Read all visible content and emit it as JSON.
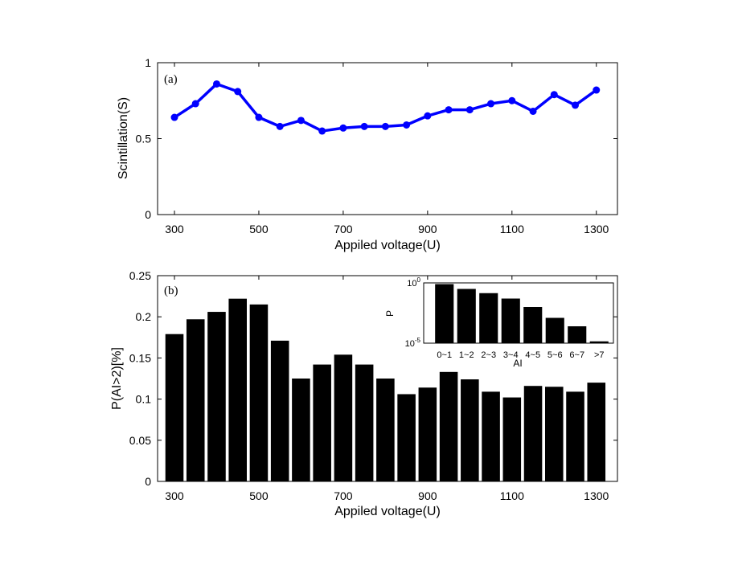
{
  "chart_data": [
    {
      "type": "line",
      "panel_label": "(a)",
      "xlabel": "Appiled voltage(U)",
      "ylabel": "Scintillation(S)",
      "xlim": [
        260,
        1350
      ],
      "ylim": [
        0,
        1
      ],
      "xticks": [
        "300",
        "500",
        "700",
        "900",
        "1100",
        "1300"
      ],
      "yticks": [
        "0",
        "0.5",
        "1"
      ],
      "color": "#0000ff",
      "x": [
        300,
        350,
        400,
        450,
        500,
        550,
        600,
        650,
        700,
        750,
        800,
        850,
        900,
        950,
        1000,
        1050,
        1100,
        1150,
        1200,
        1250,
        1300
      ],
      "y": [
        0.64,
        0.73,
        0.86,
        0.81,
        0.64,
        0.58,
        0.62,
        0.55,
        0.57,
        0.58,
        0.58,
        0.59,
        0.65,
        0.69,
        0.69,
        0.73,
        0.75,
        0.68,
        0.79,
        0.72,
        0.82
      ]
    },
    {
      "type": "bar",
      "panel_label": "(b)",
      "xlabel": "Appiled voltage(U)",
      "ylabel": "P(AI>2)[%]",
      "xlim": [
        260,
        1350
      ],
      "ylim": [
        0,
        0.25
      ],
      "xticks": [
        "300",
        "500",
        "700",
        "900",
        "1100",
        "1300"
      ],
      "yticks": [
        "0",
        "0.05",
        "0.1",
        "0.15",
        "0.2",
        "0.25"
      ],
      "color": "#000000",
      "x": [
        300,
        350,
        400,
        450,
        500,
        550,
        600,
        650,
        700,
        750,
        800,
        850,
        900,
        950,
        1000,
        1050,
        1100,
        1150,
        1200,
        1250,
        1300
      ],
      "values": [
        0.179,
        0.197,
        0.206,
        0.222,
        0.215,
        0.171,
        0.125,
        0.142,
        0.154,
        0.142,
        0.125,
        0.106,
        0.114,
        0.133,
        0.124,
        0.109,
        0.102,
        0.116,
        0.115,
        0.109,
        0.12
      ]
    },
    {
      "type": "bar",
      "inset": true,
      "xlabel": "AI",
      "ylabel": "P",
      "yscale": "log",
      "ylim_exp": [
        -5,
        0
      ],
      "ytick_exponents": [
        "0",
        "-5"
      ],
      "ytick_base": "10",
      "color": "#000000",
      "categories": [
        "0~1",
        "1~2",
        "2~3",
        "3~4",
        "4~5",
        "5~6",
        "6~7",
        ">7"
      ],
      "log10_values": [
        -0.1,
        -0.5,
        -0.85,
        -1.3,
        -2.0,
        -2.9,
        -3.6,
        -4.85
      ]
    }
  ]
}
